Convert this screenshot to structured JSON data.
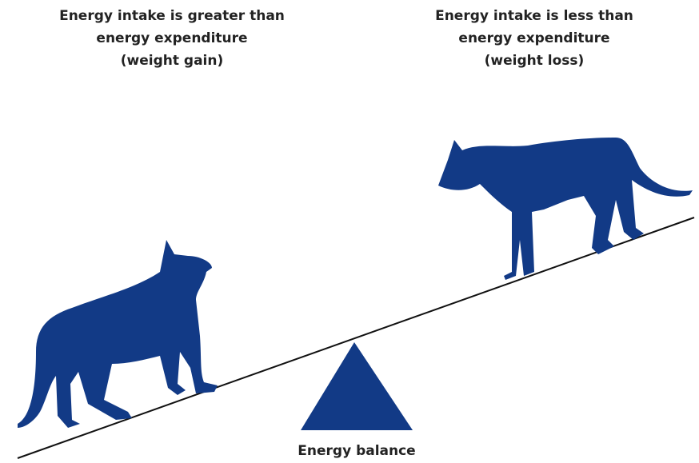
{
  "left_label": {
    "lines": [
      "Energy intake is greater than",
      "energy expenditure",
      "(weight gain)"
    ]
  },
  "right_label": {
    "lines": [
      "Energy intake is less than",
      "energy expenditure",
      "(weight loss)"
    ]
  },
  "fulcrum_label": "Energy balance"
}
